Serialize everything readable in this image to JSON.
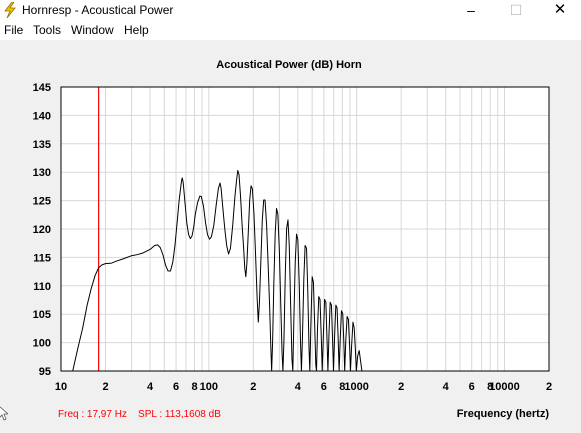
{
  "window": {
    "title": "Hornresp - Acoustical Power",
    "minimize": "–",
    "maximize": "☐",
    "close": "✕"
  },
  "menu": [
    "File",
    "Tools",
    "Window",
    "Help"
  ],
  "icons": {
    "app": "lightning-icon",
    "cursor": "mouse-cursor-icon"
  },
  "chart_data": {
    "type": "line",
    "title": "Acoustical Power (dB)   Horn",
    "xlabel": "Frequency (hertz)",
    "ylabel": "",
    "xscale": "log",
    "xlim": [
      10,
      20000
    ],
    "ylim": [
      95,
      145
    ],
    "grid": true,
    "y_ticks": [
      95,
      100,
      105,
      110,
      115,
      120,
      125,
      130,
      135,
      140,
      145
    ],
    "x_ticks": [
      {
        "value": 10,
        "label": "10"
      },
      {
        "value": 20,
        "label": "2"
      },
      {
        "value": 40,
        "label": "4"
      },
      {
        "value": 60,
        "label": "6"
      },
      {
        "value": 80,
        "label": "8"
      },
      {
        "value": 100,
        "label": "100"
      },
      {
        "value": 200,
        "label": "2"
      },
      {
        "value": 400,
        "label": "4"
      },
      {
        "value": 600,
        "label": "6"
      },
      {
        "value": 800,
        "label": "8"
      },
      {
        "value": 1000,
        "label": "1000"
      },
      {
        "value": 2000,
        "label": "2"
      },
      {
        "value": 4000,
        "label": "4"
      },
      {
        "value": 6000,
        "label": "6"
      },
      {
        "value": 8000,
        "label": "8"
      },
      {
        "value": 10000,
        "label": "10000"
      },
      {
        "value": 20000,
        "label": "2"
      }
    ],
    "marker": {
      "freq": 17.97,
      "color": "#ff0000"
    },
    "readout": "Freq : 17,97 Hz    SPL : 113,1608 dB",
    "colors": {
      "line": "#000000",
      "marker": "#ff0000",
      "readout": "#ff0000",
      "grid": "#d8d8d8"
    },
    "series": [
      {
        "points": [
          [
            12,
            95
          ],
          [
            13,
            99
          ],
          [
            14,
            102.5
          ],
          [
            15,
            106.5
          ],
          [
            16,
            109.5
          ],
          [
            17,
            111.8
          ],
          [
            18,
            113.2
          ],
          [
            19,
            113.7
          ],
          [
            20,
            113.9
          ],
          [
            22,
            114.0
          ],
          [
            24,
            114.4
          ],
          [
            26,
            114.7
          ],
          [
            28,
            115.0
          ],
          [
            30,
            115.3
          ],
          [
            33,
            115.5
          ],
          [
            36,
            115.8
          ],
          [
            40,
            116.4
          ],
          [
            43,
            117.1
          ],
          [
            45,
            117.2
          ],
          [
            47,
            116.7
          ],
          [
            49,
            115.4
          ],
          [
            51,
            113.6
          ],
          [
            53,
            112.6
          ],
          [
            55,
            112.6
          ],
          [
            57,
            114.1
          ],
          [
            59,
            117.1
          ],
          [
            61,
            121.1
          ],
          [
            63,
            125.1
          ],
          [
            65,
            128.0
          ],
          [
            66,
            129.0
          ],
          [
            67,
            128.3
          ],
          [
            69,
            124.6
          ],
          [
            71,
            121.0
          ],
          [
            73,
            119.0
          ],
          [
            75,
            118.3
          ],
          [
            77,
            118.8
          ],
          [
            79,
            120.3
          ],
          [
            81,
            122.6
          ],
          [
            84,
            124.7
          ],
          [
            87,
            125.8
          ],
          [
            89,
            125.7
          ],
          [
            92,
            124.0
          ],
          [
            95,
            121.1
          ],
          [
            98,
            119.0
          ],
          [
            101,
            118.2
          ],
          [
            104,
            118.6
          ],
          [
            108,
            120.6
          ],
          [
            112,
            124.1
          ],
          [
            116,
            127.1
          ],
          [
            119,
            128.1
          ],
          [
            121,
            127.2
          ],
          [
            124,
            124.1
          ],
          [
            128,
            120.2
          ],
          [
            132,
            117.1
          ],
          [
            136,
            115.6
          ],
          [
            140,
            116.6
          ],
          [
            145,
            120.6
          ],
          [
            150,
            125.6
          ],
          [
            154,
            128.6
          ],
          [
            157,
            130.3
          ],
          [
            160,
            129.6
          ],
          [
            164,
            125.6
          ],
          [
            168,
            120.6
          ],
          [
            172,
            116.6
          ],
          [
            175,
            113.1
          ],
          [
            178,
            111.6
          ],
          [
            181,
            114.1
          ],
          [
            185,
            119.6
          ],
          [
            189,
            125.1
          ],
          [
            193,
            127.6
          ],
          [
            197,
            127.1
          ],
          [
            202,
            122.6
          ],
          [
            207,
            115.6
          ],
          [
            212,
            108.1
          ],
          [
            216,
            103.6
          ],
          [
            220,
            107.1
          ],
          [
            225,
            114.6
          ],
          [
            230,
            121.6
          ],
          [
            235,
            125.1
          ],
          [
            240,
            125.1
          ],
          [
            246,
            120.6
          ],
          [
            252,
            113.6
          ],
          [
            258,
            106.1
          ],
          [
            262,
            100.1
          ],
          [
            266,
            95
          ],
          [
            270,
            100.1
          ],
          [
            275,
            110.1
          ],
          [
            281,
            119.1
          ],
          [
            287,
            123.6
          ],
          [
            293,
            122.6
          ],
          [
            300,
            116.1
          ],
          [
            307,
            106.1
          ],
          [
            313,
            98.1
          ],
          [
            317,
            95
          ],
          [
            322,
            100.1
          ],
          [
            329,
            112.1
          ],
          [
            336,
            120.1
          ],
          [
            343,
            121.6
          ],
          [
            350,
            117.1
          ],
          [
            358,
            106.1
          ],
          [
            365,
            97.1
          ],
          [
            370,
            95
          ],
          [
            376,
            104.1
          ],
          [
            384,
            114.1
          ],
          [
            392,
            119.1
          ],
          [
            400,
            118.1
          ],
          [
            409,
            110.1
          ],
          [
            417,
            100.1
          ],
          [
            423,
            95
          ],
          [
            430,
            101.1
          ],
          [
            439,
            111.1
          ],
          [
            448,
            117.1
          ],
          [
            458,
            116.6
          ],
          [
            467,
            109.1
          ],
          [
            476,
            99.1
          ],
          [
            482,
            95
          ],
          [
            490,
            103.1
          ],
          [
            500,
            111.6
          ],
          [
            510,
            110.6
          ],
          [
            520,
            103.1
          ],
          [
            529,
            96.1
          ],
          [
            535,
            95
          ],
          [
            543,
            102.1
          ],
          [
            554,
            108.1
          ],
          [
            565,
            107.6
          ],
          [
            576,
            101.1
          ],
          [
            585,
            95
          ],
          [
            595,
            101.1
          ],
          [
            607,
            107.6
          ],
          [
            619,
            107.1
          ],
          [
            630,
            100.6
          ],
          [
            639,
            95
          ],
          [
            650,
            101.6
          ],
          [
            662,
            107.1
          ],
          [
            675,
            106.6
          ],
          [
            688,
            100.1
          ],
          [
            697,
            95
          ],
          [
            709,
            101.1
          ],
          [
            723,
            106.6
          ],
          [
            737,
            106.1
          ],
          [
            751,
            100.1
          ],
          [
            761,
            95
          ],
          [
            774,
            100.6
          ],
          [
            789,
            105.6
          ],
          [
            805,
            105.1
          ],
          [
            820,
            99.6
          ],
          [
            830,
            95
          ],
          [
            845,
            100.6
          ],
          [
            862,
            104.6
          ],
          [
            879,
            104.1
          ],
          [
            897,
            99.1
          ],
          [
            908,
            95
          ],
          [
            925,
            99.6
          ],
          [
            944,
            103.6
          ],
          [
            962,
            102.6
          ],
          [
            981,
            98.6
          ],
          [
            995,
            95
          ],
          [
            1015,
            97.6
          ],
          [
            1040,
            98.6
          ],
          [
            1065,
            96.6
          ],
          [
            1085,
            95
          ]
        ]
      }
    ]
  }
}
